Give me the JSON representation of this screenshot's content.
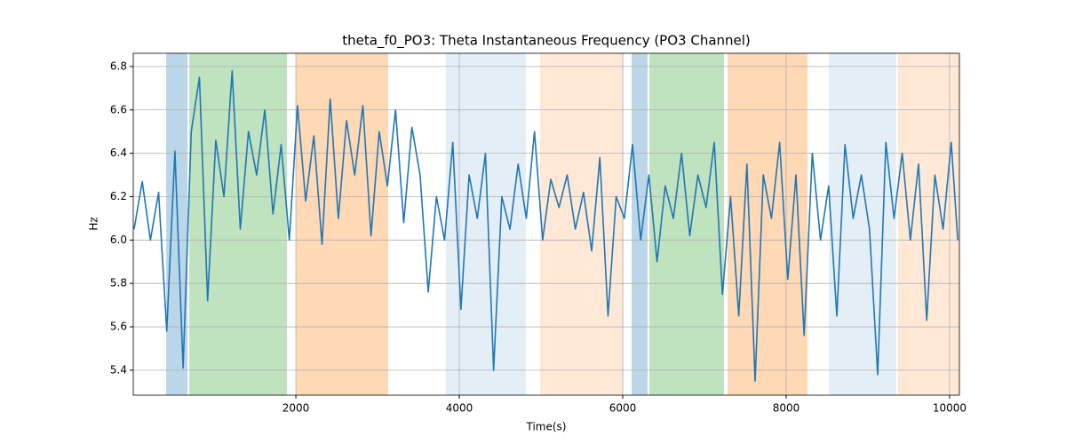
{
  "chart_data": {
    "type": "line",
    "title": "theta_f0_PO3: Theta Instantaneous Frequency (PO3 Channel)",
    "xlabel": "Time(s)",
    "ylabel": "Hz",
    "x": [
      20,
      120,
      220,
      320,
      420,
      520,
      620,
      720,
      820,
      920,
      1020,
      1120,
      1220,
      1320,
      1420,
      1520,
      1620,
      1720,
      1820,
      1920,
      2020,
      2120,
      2220,
      2320,
      2420,
      2520,
      2620,
      2720,
      2820,
      2920,
      3020,
      3120,
      3220,
      3320,
      3420,
      3520,
      3620,
      3720,
      3820,
      3920,
      4020,
      4120,
      4220,
      4320,
      4420,
      4520,
      4620,
      4720,
      4820,
      4920,
      5020,
      5120,
      5220,
      5320,
      5420,
      5520,
      5620,
      5720,
      5820,
      5920,
      6020,
      6120,
      6220,
      6320,
      6420,
      6520,
      6620,
      6720,
      6820,
      6920,
      7020,
      7120,
      7220,
      7320,
      7420,
      7520,
      7620,
      7720,
      7820,
      7920,
      8020,
      8120,
      8220,
      8320,
      8420,
      8520,
      8620,
      8720,
      8820,
      8920,
      9020,
      9120,
      9220,
      9320,
      9420,
      9520,
      9620,
      9720,
      9820,
      9920,
      10020,
      10100
    ],
    "values": [
      6.05,
      6.27,
      6.0,
      6.22,
      5.58,
      6.41,
      5.41,
      6.5,
      6.75,
      5.72,
      6.46,
      6.2,
      6.78,
      6.05,
      6.5,
      6.3,
      6.6,
      6.12,
      6.44,
      6.0,
      6.62,
      6.18,
      6.48,
      5.98,
      6.65,
      6.1,
      6.55,
      6.3,
      6.62,
      6.02,
      6.5,
      6.25,
      6.6,
      6.08,
      6.52,
      6.3,
      5.76,
      6.2,
      6.0,
      6.45,
      5.68,
      6.3,
      6.1,
      6.4,
      5.4,
      6.2,
      6.05,
      6.35,
      6.1,
      6.5,
      6.0,
      6.28,
      6.15,
      6.3,
      6.05,
      6.22,
      5.95,
      6.38,
      5.65,
      6.2,
      6.1,
      6.44,
      6.0,
      6.3,
      5.9,
      6.25,
      6.1,
      6.4,
      6.02,
      6.3,
      6.15,
      6.45,
      5.75,
      6.2,
      5.65,
      6.35,
      5.35,
      6.3,
      6.1,
      6.45,
      5.82,
      6.3,
      5.56,
      6.4,
      6.0,
      6.25,
      5.65,
      6.44,
      6.1,
      6.3,
      6.05,
      5.38,
      6.45,
      6.1,
      6.4,
      6.0,
      6.35,
      5.63,
      6.3,
      6.05,
      6.45,
      6.0
    ],
    "color": "#1f77b4",
    "spans": [
      {
        "start": 413,
        "end": 674,
        "color": "rgba(31,119,180,0.3)"
      },
      {
        "start": 696,
        "end": 1891,
        "color": "rgba(44,160,44,0.3)"
      },
      {
        "start": 2000,
        "end": 3130,
        "color": "rgba(255,127,14,0.3)"
      },
      {
        "start": 3837,
        "end": 4815,
        "color": "rgba(31,119,180,0.12)"
      },
      {
        "start": 4989,
        "end": 6011,
        "color": "rgba(255,127,14,0.17)"
      },
      {
        "start": 6109,
        "end": 6304,
        "color": "rgba(31,119,180,0.3)"
      },
      {
        "start": 6326,
        "end": 7239,
        "color": "rgba(44,160,44,0.3)"
      },
      {
        "start": 7283,
        "end": 8261,
        "color": "rgba(255,127,14,0.3)"
      },
      {
        "start": 8522,
        "end": 9348,
        "color": "rgba(31,119,180,0.12)"
      },
      {
        "start": 9370,
        "end": 10120,
        "color": "rgba(255,127,14,0.17)"
      }
    ],
    "xlim": [
      10,
      10120
    ],
    "ylim": [
      5.285,
      6.861
    ],
    "xticks": [
      2000,
      4000,
      6000,
      8000,
      10000
    ],
    "yticks": [
      5.4,
      5.6,
      5.8,
      {
        "value": 6,
        "label": "6.0"
      },
      6.2,
      6.4,
      6.6,
      6.8
    ],
    "grid": true
  }
}
